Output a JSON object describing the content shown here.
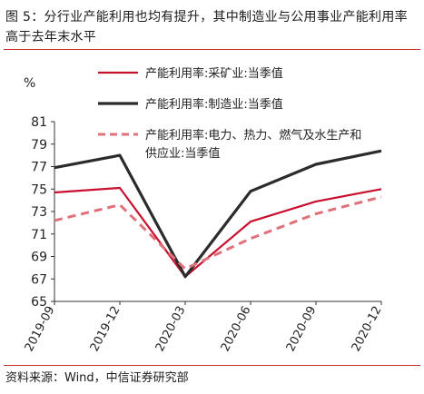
{
  "figure": {
    "title": "图 5：分行业产能利用也均有提升，其中制造业与公用事业产能利用率高于去年末水平",
    "source": "资料来源：Wind，中信证券研究部"
  },
  "colors": {
    "mining": "#c8102e",
    "manufacturing": "#2b2b2b",
    "utilities": "#e0707a",
    "rule": "#c9302c"
  },
  "chart_data": {
    "type": "line",
    "y_unit_label": "%",
    "categories": [
      "2019-09",
      "2019-12",
      "2020-03",
      "2020-06",
      "2020-09",
      "2020-12"
    ],
    "ylim": [
      65,
      81
    ],
    "yticks": [
      65,
      67,
      69,
      71,
      73,
      75,
      77,
      79,
      81
    ],
    "grid": false,
    "legend_position": "top-right",
    "series": [
      {
        "name": "产能利用率:采矿业:当季值",
        "key": "mining",
        "style": "solid-thin",
        "values": [
          74.7,
          75.1,
          67.2,
          72.1,
          73.9,
          75.0
        ]
      },
      {
        "name": "产能利用率:制造业:当季值",
        "key": "manufacturing",
        "style": "solid-thick",
        "values": [
          76.9,
          78.0,
          67.2,
          74.8,
          77.2,
          78.4
        ]
      },
      {
        "name": "产能利用率:电力、热力、燃气及水生产和供应业:当季值",
        "key": "utilities",
        "style": "dashed",
        "legend_lines": [
          "产能利用率:电力、热力、燃气及水生产和",
          "供应业:当季值"
        ],
        "values": [
          72.2,
          73.6,
          67.9,
          70.6,
          72.8,
          74.3
        ]
      }
    ]
  }
}
